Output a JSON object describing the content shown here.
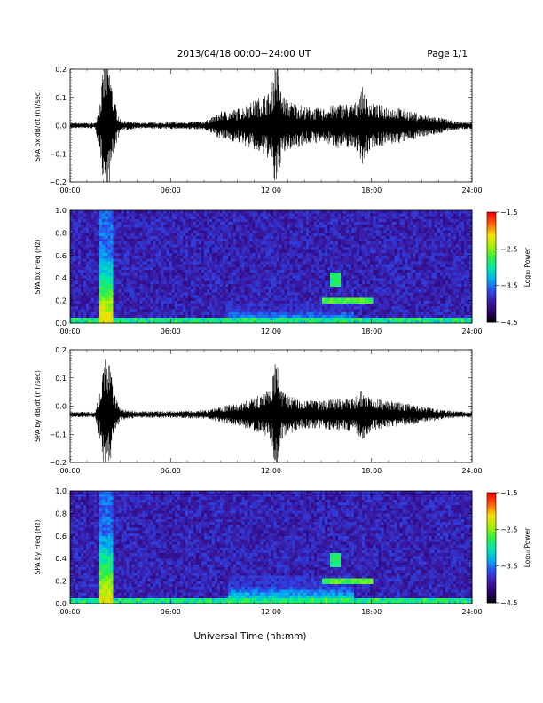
{
  "header": {
    "date_range": "2013/04/18  00:00−24:00 UT",
    "page": "Page 1/1"
  },
  "colors": {
    "trace": "#000000",
    "background": "#ffffff",
    "colormap": [
      "#000000",
      "#2a006a",
      "#3a1ca8",
      "#2a4cf0",
      "#00b0f0",
      "#00e8a8",
      "#30f040",
      "#a8f000",
      "#f8e000",
      "#ff6000",
      "#ff0000"
    ]
  },
  "x_axis": {
    "label": "Universal Time (hh:mm)",
    "ticks": [
      "00:00",
      "06:00",
      "12:00",
      "18:00",
      "24:00"
    ]
  },
  "chart_data": [
    {
      "type": "line",
      "ylabel": "SPA bx dB/dt (nT/sec)",
      "xlim": [
        0,
        24
      ],
      "ylim": [
        -0.2,
        0.2
      ],
      "yticks": [
        "0.2",
        "0.1",
        "0.0",
        "−0.1",
        "−0.2"
      ],
      "baseline": 0.0,
      "envelope_x": [
        0,
        1.5,
        1.8,
        2.0,
        2.2,
        2.4,
        2.6,
        3.0,
        4,
        6,
        8,
        8.5,
        9,
        10,
        11,
        11.5,
        12,
        12.3,
        12.6,
        13,
        14,
        15,
        16,
        17,
        17.5,
        18,
        19,
        20,
        21,
        22,
        23,
        24
      ],
      "envelope_amp": [
        0.01,
        0.01,
        0.1,
        0.21,
        0.25,
        0.2,
        0.1,
        0.02,
        0.01,
        0.012,
        0.015,
        0.03,
        0.05,
        0.06,
        0.09,
        0.11,
        0.12,
        0.26,
        0.12,
        0.09,
        0.07,
        0.06,
        0.08,
        0.08,
        0.14,
        0.08,
        0.07,
        0.06,
        0.04,
        0.03,
        0.015,
        0.012
      ]
    },
    {
      "type": "heatmap",
      "ylabel": "SPA bx Freq (Hz)",
      "xlim": [
        0,
        24
      ],
      "ylim": [
        0.0,
        1.0
      ],
      "yticks": [
        "1.0",
        "0.8",
        "0.6",
        "0.4",
        "0.2",
        "0.0"
      ],
      "colorbar": {
        "label": "Log₁₀ Power",
        "range": [
          -4.5,
          -1.5
        ],
        "ticks": [
          "−1.5",
          "−2.5",
          "−3.5",
          "−4.5"
        ]
      },
      "features": [
        {
          "x_start": 1.7,
          "x_end": 2.6,
          "f_max": 1.0,
          "level": 0.75
        },
        {
          "x_start": 9.5,
          "x_end": 17.0,
          "f_max": 0.18,
          "level": 0.45
        },
        {
          "x_start": 15.0,
          "x_end": 18.0,
          "f_min": 0.17,
          "f_max": 0.23,
          "level": 0.55
        },
        {
          "x_start": 15.5,
          "x_end": 16.2,
          "f_min": 0.33,
          "f_max": 0.44,
          "level": 0.5
        }
      ]
    },
    {
      "type": "line",
      "ylabel": "SPA by dB/dt (nT/sec)",
      "xlim": [
        0,
        24
      ],
      "ylim": [
        -0.2,
        0.2
      ],
      "yticks": [
        "0.2",
        "0.1",
        "0.0",
        "−0.1",
        "−0.2"
      ],
      "baseline": -0.03,
      "envelope_x": [
        0,
        1.5,
        1.8,
        2.0,
        2.2,
        2.4,
        2.6,
        3.0,
        4,
        6,
        8,
        8.5,
        9,
        10,
        11,
        11.5,
        12,
        12.3,
        12.6,
        13,
        14,
        15,
        16,
        17,
        17.5,
        18,
        19,
        20,
        21,
        22,
        23,
        24
      ],
      "envelope_amp": [
        0.01,
        0.01,
        0.09,
        0.19,
        0.21,
        0.17,
        0.08,
        0.02,
        0.012,
        0.012,
        0.015,
        0.02,
        0.03,
        0.04,
        0.06,
        0.08,
        0.09,
        0.22,
        0.09,
        0.07,
        0.05,
        0.05,
        0.06,
        0.06,
        0.1,
        0.06,
        0.05,
        0.04,
        0.03,
        0.02,
        0.012,
        0.01
      ]
    },
    {
      "type": "heatmap",
      "ylabel": "SPA by Freq (Hz)",
      "xlim": [
        0,
        24
      ],
      "ylim": [
        0.0,
        1.0
      ],
      "yticks": [
        "1.0",
        "0.8",
        "0.6",
        "0.4",
        "0.2",
        "0.0"
      ],
      "colorbar": {
        "label": "Log₁₀ Power",
        "range": [
          -4.5,
          -1.5
        ],
        "ticks": [
          "−1.5",
          "−2.5",
          "−3.5",
          "−4.5"
        ]
      },
      "features": [
        {
          "x_start": 1.7,
          "x_end": 2.6,
          "f_max": 1.0,
          "level": 0.75
        },
        {
          "x_start": 9.5,
          "x_end": 17.0,
          "f_max": 0.25,
          "level": 0.5
        },
        {
          "x_start": 15.0,
          "x_end": 18.0,
          "f_min": 0.17,
          "f_max": 0.23,
          "level": 0.55
        },
        {
          "x_start": 15.5,
          "x_end": 16.2,
          "f_min": 0.33,
          "f_max": 0.44,
          "level": 0.5
        }
      ]
    }
  ]
}
